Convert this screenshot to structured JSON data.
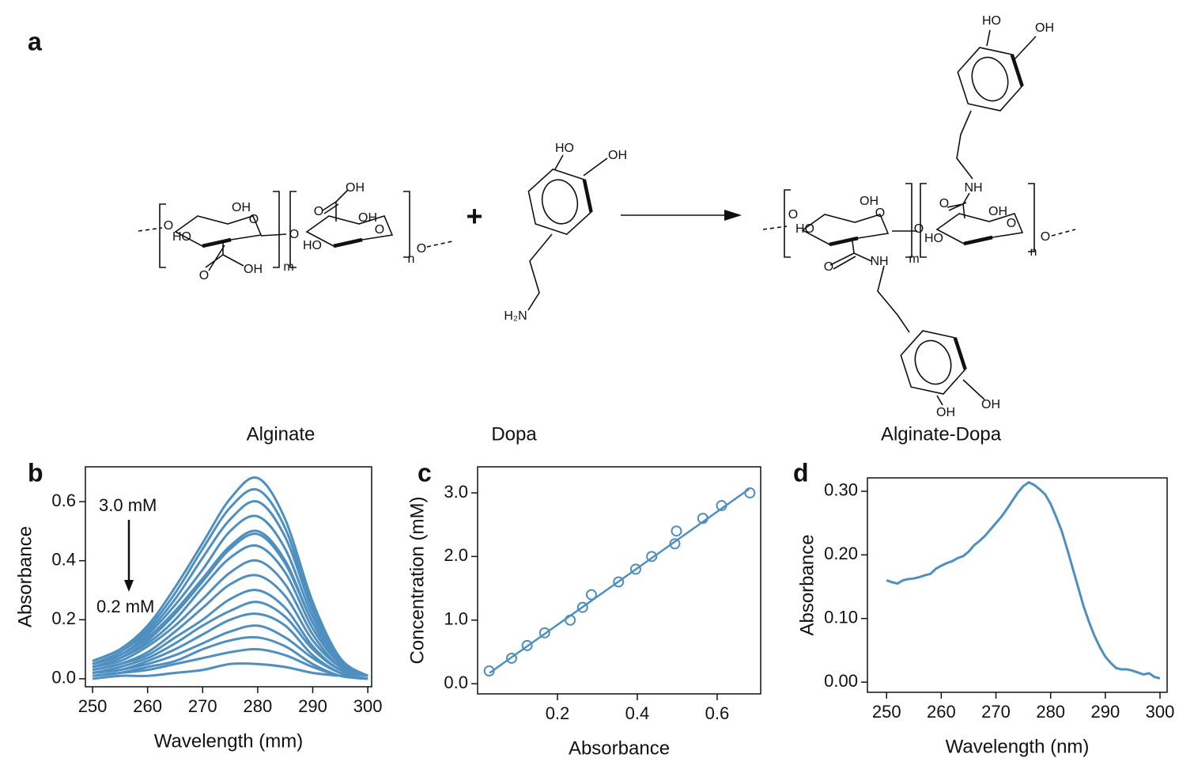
{
  "scheme": {
    "panel": "a",
    "plus": "+",
    "compounds": [
      {
        "name": "Alginate",
        "atoms": [
          "O",
          "HO",
          "OH",
          "O",
          "O",
          "OH",
          "m",
          "O",
          "OH",
          "O",
          "OH",
          "O",
          "HO",
          "n",
          "O"
        ]
      },
      {
        "name": "Dopa",
        "atoms": [
          "HO",
          "OH",
          "H₂N"
        ]
      },
      {
        "name": "Alginate-Dopa",
        "atoms": [
          "HO",
          "OH",
          "NH",
          "O",
          "O",
          "HO",
          "OH",
          "O",
          "O",
          "OH",
          "O",
          "HO",
          "n",
          "O",
          "m",
          "O",
          "NH",
          "OH",
          "OH"
        ]
      }
    ]
  },
  "chart_data": [
    {
      "panel": "b",
      "type": "line",
      "color": "#4f8fc0",
      "xlabel": "Wavelength (mm)",
      "ylabel": "Absorbance",
      "annotations": [
        "3.0 mM",
        "0.2 mM"
      ],
      "x": [
        250,
        255,
        260,
        265,
        270,
        275,
        280,
        285,
        290,
        295,
        300
      ],
      "series": [
        {
          "values": [
            0.06,
            0.1,
            0.18,
            0.31,
            0.46,
            0.61,
            0.68,
            0.54,
            0.26,
            0.07,
            0.01
          ]
        },
        {
          "values": [
            0.06,
            0.1,
            0.17,
            0.29,
            0.44,
            0.58,
            0.64,
            0.51,
            0.24,
            0.06,
            0.01
          ]
        },
        {
          "values": [
            0.05,
            0.09,
            0.16,
            0.27,
            0.41,
            0.54,
            0.6,
            0.48,
            0.23,
            0.06,
            0.01
          ]
        },
        {
          "values": [
            0.05,
            0.08,
            0.15,
            0.25,
            0.37,
            0.5,
            0.55,
            0.44,
            0.21,
            0.06,
            0.01
          ]
        },
        {
          "values": [
            0.05,
            0.08,
            0.14,
            0.23,
            0.34,
            0.45,
            0.5,
            0.4,
            0.19,
            0.05,
            0.01
          ]
        },
        {
          "values": [
            0.04,
            0.07,
            0.13,
            0.22,
            0.33,
            0.44,
            0.49,
            0.39,
            0.19,
            0.05,
            0.01
          ]
        },
        {
          "values": [
            0.04,
            0.07,
            0.12,
            0.2,
            0.31,
            0.41,
            0.45,
            0.36,
            0.17,
            0.05,
            0.01
          ]
        },
        {
          "values": [
            0.04,
            0.06,
            0.11,
            0.18,
            0.27,
            0.36,
            0.4,
            0.32,
            0.15,
            0.04,
            0.01
          ]
        },
        {
          "values": [
            0.03,
            0.05,
            0.09,
            0.16,
            0.24,
            0.32,
            0.35,
            0.28,
            0.13,
            0.04,
            0.01
          ]
        },
        {
          "values": [
            0.03,
            0.05,
            0.08,
            0.14,
            0.2,
            0.27,
            0.3,
            0.24,
            0.11,
            0.03,
            0.01
          ]
        },
        {
          "values": [
            0.02,
            0.04,
            0.07,
            0.12,
            0.18,
            0.23,
            0.26,
            0.21,
            0.1,
            0.03,
            0.01
          ]
        },
        {
          "values": [
            0.02,
            0.03,
            0.06,
            0.1,
            0.15,
            0.2,
            0.22,
            0.18,
            0.08,
            0.02,
            0.0
          ]
        },
        {
          "values": [
            0.02,
            0.03,
            0.05,
            0.08,
            0.12,
            0.16,
            0.18,
            0.14,
            0.07,
            0.02,
            0.0
          ]
        },
        {
          "values": [
            0.01,
            0.02,
            0.04,
            0.06,
            0.1,
            0.13,
            0.14,
            0.11,
            0.05,
            0.01,
            0.0
          ]
        },
        {
          "values": [
            0.01,
            0.02,
            0.03,
            0.05,
            0.07,
            0.09,
            0.1,
            0.08,
            0.04,
            0.01,
            0.0
          ]
        },
        {
          "values": [
            0.0,
            0.01,
            0.01,
            0.02,
            0.03,
            0.05,
            0.05,
            0.04,
            0.02,
            0.01,
            0.0
          ]
        }
      ],
      "smooth": true,
      "xlim": [
        248.7,
        300.7
      ],
      "ylim": [
        -0.027,
        0.718
      ],
      "xticks": [
        250,
        260,
        270,
        280,
        290,
        300
      ],
      "yticks": [
        {
          "value": 0,
          "label": "0.0"
        },
        0.2,
        0.4,
        0.6
      ]
    },
    {
      "panel": "c",
      "type": "scatter",
      "color": "#4f8fc0",
      "xlabel": "Absorbance",
      "ylabel": "Concentration (mM)",
      "series": [
        {
          "marker": "circle",
          "x": [
            0.029,
            0.085,
            0.124,
            0.168,
            0.232,
            0.263,
            0.285,
            0.353,
            0.396,
            0.436,
            0.494,
            0.498,
            0.564,
            0.611,
            0.682
          ],
          "values": [
            0.2,
            0.4,
            0.6,
            0.8,
            1.0,
            1.2,
            1.4,
            1.6,
            1.8,
            2.0,
            2.2,
            2.4,
            2.6,
            2.8,
            3.0
          ]
        },
        {
          "marker": "line",
          "x": [
            0.03,
            0.68
          ],
          "values": [
            0.17,
            3.06
          ]
        }
      ],
      "xlim": [
        0,
        0.709
      ],
      "ylim": [
        -0.16,
        3.41
      ],
      "xticks": [
        0.2,
        0.4,
        0.6
      ],
      "yticks": [
        {
          "value": 0,
          "label": "0.0"
        },
        {
          "value": 1,
          "label": "1.0"
        },
        {
          "value": 2,
          "label": "2.0"
        },
        {
          "value": 3,
          "label": "3.0"
        }
      ]
    },
    {
      "panel": "d",
      "type": "line",
      "color": "#4f8fc0",
      "xlabel": "Wavelength (nm)",
      "ylabel": "Absorbance",
      "x": [
        250,
        251,
        252,
        253,
        254,
        255,
        256,
        257,
        258,
        259,
        260,
        261,
        262,
        263,
        264,
        265,
        266,
        267,
        268,
        269,
        270,
        271,
        272,
        273,
        274,
        275,
        276,
        277,
        278,
        279,
        280,
        281,
        282,
        283,
        284,
        285,
        286,
        287,
        288,
        289,
        290,
        291,
        292,
        293,
        294,
        295,
        296,
        297,
        298,
        299,
        300
      ],
      "series": [
        {
          "values": [
            0.16,
            0.157,
            0.155,
            0.16,
            0.162,
            0.163,
            0.165,
            0.168,
            0.17,
            0.178,
            0.183,
            0.187,
            0.19,
            0.195,
            0.198,
            0.205,
            0.215,
            0.222,
            0.23,
            0.24,
            0.25,
            0.26,
            0.272,
            0.285,
            0.298,
            0.308,
            0.314,
            0.31,
            0.303,
            0.295,
            0.28,
            0.26,
            0.238,
            0.21,
            0.18,
            0.15,
            0.12,
            0.095,
            0.073,
            0.055,
            0.04,
            0.03,
            0.022,
            0.02,
            0.02,
            0.018,
            0.015,
            0.012,
            0.014,
            0.008,
            0.006
          ]
        }
      ],
      "smooth": false,
      "xlim": [
        246.5,
        301.3
      ],
      "ylim": [
        -0.016,
        0.321
      ],
      "xticks": [
        250,
        260,
        270,
        280,
        290,
        300
      ],
      "yticks": [
        {
          "value": 0,
          "label": "0.00"
        },
        {
          "value": 0.1,
          "label": "0.10"
        },
        {
          "value": 0.2,
          "label": "0.20"
        },
        {
          "value": 0.3,
          "label": "0.30"
        }
      ]
    }
  ]
}
